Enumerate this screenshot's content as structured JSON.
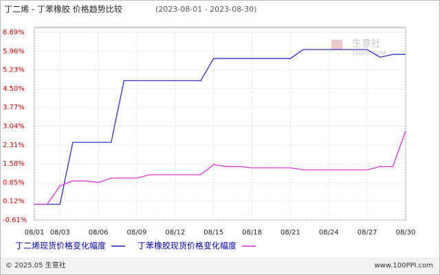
{
  "chart_data": {
    "type": "line",
    "title": "丁二烯 - 丁苯橡胶 价格趋势比较",
    "subtitle": "(2023-08-01 - 2023-08-30)",
    "categories": [
      "08/01",
      null,
      "08/03",
      null,
      null,
      "08/06",
      null,
      null,
      "08/09",
      null,
      null,
      "08/12",
      null,
      null,
      "08/15",
      null,
      null,
      "08/18",
      null,
      null,
      "08/21",
      null,
      null,
      "08/24",
      null,
      null,
      "08/27",
      null,
      null,
      "08/30"
    ],
    "series": [
      {
        "name": "丁二烯现货价格变化幅度",
        "color": "#1a1acc",
        "values": [
          0,
          0,
          0,
          2.41,
          2.41,
          2.41,
          2.41,
          4.81,
          4.81,
          4.81,
          4.81,
          4.81,
          4.81,
          4.81,
          5.67,
          5.67,
          5.67,
          5.67,
          5.67,
          5.67,
          5.67,
          6.02,
          6.02,
          6.02,
          6.02,
          6.02,
          6.02,
          5.72,
          5.83,
          5.83
        ]
      },
      {
        "name": "丁苯橡胶现货价格变化幅度",
        "color": "#dd22dd",
        "values": [
          0,
          0,
          0.72,
          0.91,
          0.91,
          0.85,
          1.02,
          1.02,
          1.02,
          1.15,
          1.15,
          1.15,
          1.15,
          1.15,
          1.55,
          1.47,
          1.47,
          1.42,
          1.42,
          1.42,
          1.42,
          1.34,
          1.34,
          1.34,
          1.34,
          1.34,
          1.34,
          1.47,
          1.47,
          2.86
        ]
      }
    ],
    "ylim": [
      -0.61,
      6.69
    ],
    "yticks": [
      {
        "value": -0.61,
        "label": "-0.61%"
      },
      {
        "value": 0.12,
        "label": "0.12%"
      },
      {
        "value": 0.85,
        "label": "0.85%"
      },
      {
        "value": 1.58,
        "label": "1.58%"
      },
      {
        "value": 2.31,
        "label": "2.31%"
      },
      {
        "value": 3.04,
        "label": "3.04%"
      },
      {
        "value": 3.77,
        "label": "3.77%"
      },
      {
        "value": 4.5,
        "label": "4.50%"
      },
      {
        "value": 5.23,
        "label": "5.23%"
      },
      {
        "value": 5.96,
        "label": "5.96%"
      },
      {
        "value": 6.69,
        "label": "6.69%"
      }
    ],
    "grid": true,
    "watermark": {
      "name": "生意社",
      "site": "100PPI.COM"
    },
    "footer": {
      "copyright": "© 2025.05 生意社",
      "site": "www.100PPI.com"
    }
  }
}
